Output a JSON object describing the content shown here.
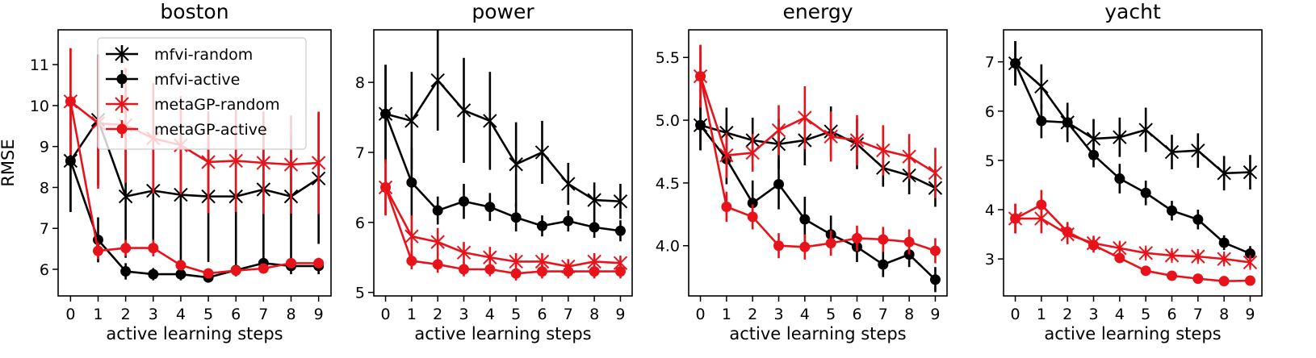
{
  "figure": {
    "xlabel": "active learning steps",
    "ylabel": "RMSE",
    "legend": {
      "location": "top-right of first panel",
      "entries": [
        {
          "label": "mfvi-random",
          "color": "#000000",
          "marker": "x"
        },
        {
          "label": "mfvi-active",
          "color": "#000000",
          "marker": "o"
        },
        {
          "label": "metaGP-random",
          "color": "#e8131a",
          "marker": "x"
        },
        {
          "label": "metaGP-active",
          "color": "#e8131a",
          "marker": "o"
        }
      ]
    },
    "colors": {
      "mfvi": "#000000",
      "metaGP": "#e8131a"
    }
  },
  "chart_data": [
    {
      "type": "line",
      "title": "boston",
      "xlabel": "active learning steps",
      "ylabel": "RMSE",
      "x": [
        0,
        1,
        2,
        3,
        4,
        5,
        6,
        7,
        8,
        9
      ],
      "xticks": [
        0,
        1,
        2,
        3,
        4,
        5,
        6,
        7,
        8,
        9
      ],
      "ylim": [
        5.35,
        11.85
      ],
      "yticks": [
        6,
        7,
        8,
        9,
        10,
        11
      ],
      "yticklabels": [
        "6",
        "7",
        "8",
        "9",
        "10",
        "11"
      ],
      "series": [
        {
          "name": "mfvi-random",
          "marker": "x",
          "color": "#000000",
          "values": [
            8.65,
            9.65,
            7.78,
            7.92,
            7.82,
            7.78,
            7.78,
            7.95,
            7.78,
            8.22
          ],
          "errors": [
            1.25,
            1.6,
            1.5,
            1.6,
            1.65,
            1.6,
            1.65,
            1.6,
            1.55,
            1.6
          ]
        },
        {
          "name": "mfvi-active",
          "marker": "o",
          "color": "#000000",
          "values": [
            8.65,
            6.72,
            5.95,
            5.88,
            5.88,
            5.8,
            5.98,
            6.15,
            6.08,
            6.08
          ],
          "errors": [
            1.25,
            0.55,
            0.2,
            0.15,
            0.15,
            0.12,
            0.15,
            0.2,
            0.2,
            0.2
          ]
        },
        {
          "name": "metaGP-random",
          "marker": "x",
          "color": "#e8131a",
          "values": [
            10.1,
            9.57,
            9.52,
            9.2,
            9.03,
            8.62,
            8.65,
            8.6,
            8.56,
            8.6
          ],
          "errors": [
            1.3,
            1.6,
            1.4,
            1.35,
            1.2,
            1.25,
            1.25,
            1.25,
            1.2,
            1.25
          ]
        },
        {
          "name": "metaGP-active",
          "marker": "o",
          "color": "#e8131a",
          "values": [
            10.1,
            6.45,
            6.52,
            6.52,
            6.1,
            5.9,
            5.97,
            6.02,
            6.15,
            6.15
          ],
          "errors": [
            1.3,
            0.2,
            0.2,
            0.2,
            0.12,
            0.1,
            0.1,
            0.1,
            0.1,
            0.1
          ]
        }
      ]
    },
    {
      "type": "line",
      "title": "power",
      "xlabel": "active learning steps",
      "ylabel": "",
      "x": [
        0,
        1,
        2,
        3,
        4,
        5,
        6,
        7,
        8,
        9
      ],
      "xticks": [
        0,
        1,
        2,
        3,
        4,
        5,
        6,
        7,
        8,
        9
      ],
      "ylim": [
        4.95,
        8.75
      ],
      "yticks": [
        5,
        6,
        7,
        8
      ],
      "yticklabels": [
        "5",
        "6",
        "7",
        "8"
      ],
      "series": [
        {
          "name": "mfvi-random",
          "marker": "x",
          "color": "#000000",
          "values": [
            7.55,
            7.45,
            8.03,
            7.6,
            7.45,
            6.83,
            7.0,
            6.55,
            6.32,
            6.3
          ],
          "errors": [
            0.7,
            0.7,
            0.72,
            0.75,
            0.7,
            0.6,
            0.45,
            0.3,
            0.25,
            0.25
          ]
        },
        {
          "name": "mfvi-active",
          "marker": "o",
          "color": "#000000",
          "values": [
            7.55,
            6.57,
            6.17,
            6.3,
            6.22,
            6.07,
            5.95,
            6.02,
            5.93,
            5.88
          ],
          "errors": [
            0.7,
            0.5,
            0.2,
            0.25,
            0.2,
            0.2,
            0.15,
            0.15,
            0.15,
            0.15
          ]
        },
        {
          "name": "metaGP-random",
          "marker": "x",
          "color": "#e8131a",
          "values": [
            6.5,
            5.8,
            5.72,
            5.57,
            5.5,
            5.44,
            5.44,
            5.37,
            5.44,
            5.42
          ],
          "errors": [
            0.4,
            0.3,
            0.2,
            0.15,
            0.15,
            0.12,
            0.12,
            0.1,
            0.12,
            0.1
          ]
        },
        {
          "name": "metaGP-active",
          "marker": "o",
          "color": "#e8131a",
          "values": [
            6.5,
            5.45,
            5.4,
            5.33,
            5.33,
            5.27,
            5.3,
            5.3,
            5.3,
            5.3
          ],
          "errors": [
            0.4,
            0.12,
            0.12,
            0.1,
            0.1,
            0.1,
            0.1,
            0.1,
            0.1,
            0.1
          ]
        }
      ]
    },
    {
      "type": "line",
      "title": "energy",
      "xlabel": "active learning steps",
      "ylabel": "",
      "x": [
        0,
        1,
        2,
        3,
        4,
        5,
        6,
        7,
        8,
        9
      ],
      "xticks": [
        0,
        1,
        2,
        3,
        4,
        5,
        6,
        7,
        8,
        9
      ],
      "ylim": [
        3.6,
        5.72
      ],
      "yticks": [
        4.0,
        4.5,
        5.0,
        5.5
      ],
      "yticklabels": [
        "4.0",
        "4.5",
        "5.0",
        "5.5"
      ],
      "series": [
        {
          "name": "mfvi-random",
          "marker": "x",
          "color": "#000000",
          "values": [
            4.96,
            4.9,
            4.84,
            4.81,
            4.84,
            4.91,
            4.81,
            4.62,
            4.56,
            4.46
          ],
          "errors": [
            0.2,
            0.2,
            0.18,
            0.2,
            0.2,
            0.2,
            0.2,
            0.15,
            0.15,
            0.15
          ]
        },
        {
          "name": "mfvi-active",
          "marker": "o",
          "color": "#000000",
          "values": [
            4.96,
            4.69,
            4.34,
            4.49,
            4.21,
            4.09,
            3.99,
            3.85,
            3.93,
            3.73
          ],
          "errors": [
            0.2,
            0.2,
            0.18,
            0.2,
            0.18,
            0.15,
            0.12,
            0.1,
            0.1,
            0.1
          ]
        },
        {
          "name": "metaGP-random",
          "marker": "x",
          "color": "#e8131a",
          "values": [
            5.35,
            4.72,
            4.74,
            4.92,
            5.02,
            4.87,
            4.84,
            4.76,
            4.71,
            4.58
          ],
          "errors": [
            0.25,
            0.18,
            0.15,
            0.2,
            0.25,
            0.2,
            0.2,
            0.2,
            0.18,
            0.2
          ]
        },
        {
          "name": "metaGP-active",
          "marker": "o",
          "color": "#e8131a",
          "values": [
            5.35,
            4.31,
            4.23,
            4.0,
            3.99,
            4.02,
            4.06,
            4.05,
            4.03,
            3.96
          ],
          "errors": [
            0.25,
            0.12,
            0.1,
            0.1,
            0.1,
            0.1,
            0.1,
            0.1,
            0.1,
            0.1
          ]
        }
      ]
    },
    {
      "type": "line",
      "title": "yacht",
      "xlabel": "active learning steps",
      "ylabel": "",
      "x": [
        0,
        1,
        2,
        3,
        4,
        5,
        6,
        7,
        8,
        9
      ],
      "xticks": [
        0,
        1,
        2,
        3,
        4,
        5,
        6,
        7,
        8,
        9
      ],
      "ylim": [
        2.25,
        7.65
      ],
      "yticks": [
        3,
        4,
        5,
        6,
        7
      ],
      "yticklabels": [
        "3",
        "4",
        "5",
        "6",
        "7"
      ],
      "series": [
        {
          "name": "mfvi-random",
          "marker": "x",
          "color": "#000000",
          "values": [
            6.97,
            6.5,
            5.77,
            5.44,
            5.47,
            5.62,
            5.17,
            5.2,
            4.74,
            4.76
          ],
          "errors": [
            0.45,
            0.45,
            0.4,
            0.4,
            0.4,
            0.45,
            0.35,
            0.35,
            0.35,
            0.35
          ]
        },
        {
          "name": "mfvi-active",
          "marker": "o",
          "color": "#000000",
          "values": [
            6.97,
            5.8,
            5.77,
            5.11,
            4.63,
            4.34,
            3.98,
            3.8,
            3.33,
            3.11
          ],
          "errors": [
            0.45,
            0.35,
            0.3,
            0.25,
            0.3,
            0.25,
            0.2,
            0.2,
            0.15,
            0.15
          ]
        },
        {
          "name": "metaGP-random",
          "marker": "x",
          "color": "#e8131a",
          "values": [
            3.82,
            3.82,
            3.5,
            3.32,
            3.22,
            3.12,
            3.07,
            3.05,
            3.0,
            2.93
          ],
          "errors": [
            0.3,
            0.3,
            0.2,
            0.15,
            0.12,
            0.1,
            0.1,
            0.1,
            0.1,
            0.1
          ]
        },
        {
          "name": "metaGP-active",
          "marker": "o",
          "color": "#e8131a",
          "values": [
            3.82,
            4.1,
            3.55,
            3.28,
            3.02,
            2.76,
            2.66,
            2.6,
            2.55,
            2.56
          ],
          "errors": [
            0.3,
            0.3,
            0.2,
            0.15,
            0.1,
            0.08,
            0.06,
            0.06,
            0.05,
            0.05
          ]
        }
      ]
    }
  ]
}
